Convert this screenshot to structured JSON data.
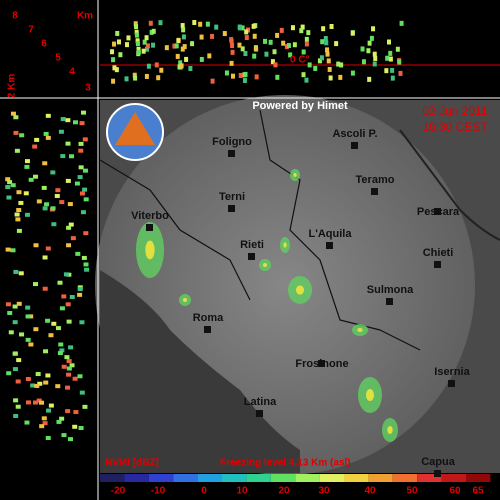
{
  "header": {
    "credit": "Powered by Himet",
    "date": "02 Jun 2011",
    "time": "16:30 CEST"
  },
  "height_scale": {
    "unit": "Km",
    "levels": [
      8,
      7,
      6,
      5,
      4,
      3
    ],
    "side_label": "2 Km"
  },
  "profile": {
    "freezing_marker": "0 C°"
  },
  "cities": [
    "Foligno",
    "Ascoli P.",
    "Terni",
    "Teramo",
    "Viterbo",
    "Rieti",
    "L'Aquila",
    "Pescara",
    "Chieti",
    "Sulmona",
    "Roma",
    "Frosinone",
    "Isernia",
    "Latina",
    "Capua"
  ],
  "footer": {
    "product": "NVMI [dBZ]",
    "freezing_level": "Freezing level  4.13 Km (asl)"
  },
  "colorbar": {
    "ticks": [
      -20,
      -10,
      0,
      10,
      20,
      30,
      40,
      50,
      60,
      65
    ]
  }
}
